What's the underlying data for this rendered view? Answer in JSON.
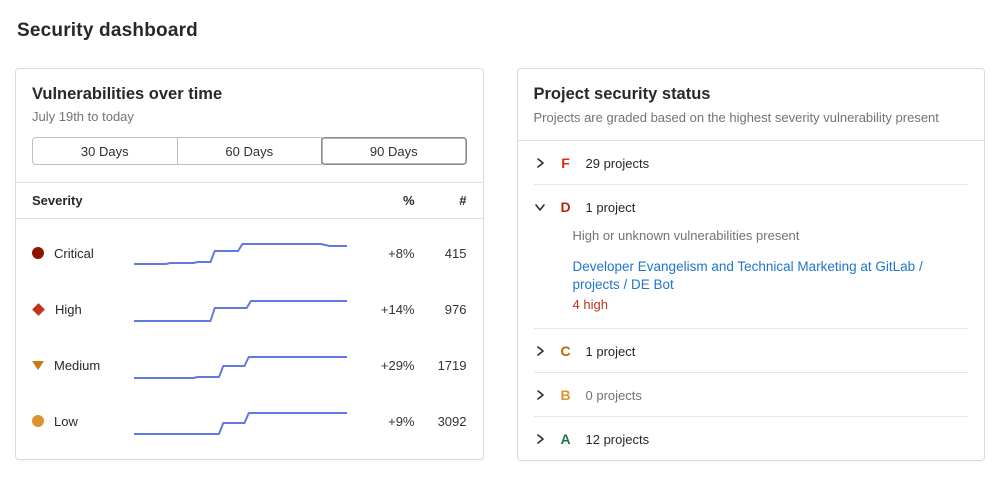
{
  "page": {
    "title": "Security dashboard"
  },
  "colors": {
    "sparkline_blue": "#617ae2",
    "link_blue": "#1f75cb",
    "danger_red": "#c0341d"
  },
  "vuln_card": {
    "title": "Vulnerabilities over time",
    "subtitle": "July 19th to today",
    "range_buttons": [
      {
        "label": "30 Days",
        "selected": false
      },
      {
        "label": "60 Days",
        "selected": false
      },
      {
        "label": "90 Days",
        "selected": true
      }
    ],
    "table": {
      "header": {
        "severity": "Severity",
        "percent": "%",
        "count": "#"
      },
      "rows": [
        {
          "severity": "Critical",
          "icon": "critical-icon",
          "icon_color": "#8d1300",
          "percent": "+8%",
          "count": "415"
        },
        {
          "severity": "High",
          "icon": "high-icon",
          "icon_color": "#c0341d",
          "percent": "+14%",
          "count": "976"
        },
        {
          "severity": "Medium",
          "icon": "medium-icon",
          "icon_color": "#c17d10",
          "percent": "+29%",
          "count": "1719"
        },
        {
          "severity": "Low",
          "icon": "low-icon",
          "icon_color": "#d99530",
          "percent": "+9%",
          "count": "3092"
        }
      ]
    },
    "chart_data": {
      "type": "line",
      "title": "Vulnerabilities over time",
      "x_range_label": "July 19th to today",
      "selected_range_days": 90,
      "legend_position": "none",
      "grid": false,
      "series": [
        {
          "name": "Critical",
          "change_percent": "+8%",
          "current_count": 415,
          "points": [
            [
              0,
              31
            ],
            [
              15,
              31
            ],
            [
              17,
              30
            ],
            [
              28,
              30
            ],
            [
              30,
              29
            ],
            [
              36,
              29
            ],
            [
              38,
              18
            ],
            [
              49,
              18
            ],
            [
              51,
              11
            ],
            [
              88,
              11
            ],
            [
              92,
              13
            ],
            [
              100,
              13
            ]
          ]
        },
        {
          "name": "High",
          "change_percent": "+14%",
          "current_count": 976,
          "points": [
            [
              0,
              32
            ],
            [
              36,
              32
            ],
            [
              38,
              19
            ],
            [
              53,
              19
            ],
            [
              55,
              12
            ],
            [
              100,
              12
            ]
          ]
        },
        {
          "name": "Medium",
          "change_percent": "+29%",
          "current_count": 1719,
          "points": [
            [
              0,
              33
            ],
            [
              28,
              33
            ],
            [
              30,
              32
            ],
            [
              40,
              32
            ],
            [
              42,
              21
            ],
            [
              52,
              21
            ],
            [
              54,
              12
            ],
            [
              100,
              12
            ]
          ]
        },
        {
          "name": "Low",
          "change_percent": "+9%",
          "current_count": 3092,
          "points": [
            [
              0,
              33
            ],
            [
              40,
              33
            ],
            [
              42,
              22
            ],
            [
              52,
              22
            ],
            [
              54,
              12
            ],
            [
              100,
              12
            ]
          ]
        }
      ]
    }
  },
  "status_card": {
    "title": "Project security status",
    "subtitle": "Projects are graded based on the highest severity vulnerability present",
    "grades": [
      {
        "letter": "F",
        "color": "#dd2b0e",
        "count_label": "29 projects",
        "expanded": false
      },
      {
        "letter": "D",
        "color": "#b22b10",
        "count_label": "1 project",
        "expanded": true,
        "description": "High or unknown vulnerabilities present",
        "project_link": "Developer Evangelism and Technical Marketing at GitLab / projects / DE Bot",
        "finding_summary": "4 high"
      },
      {
        "letter": "C",
        "color": "#c26000",
        "count_label": "1 project",
        "expanded": false
      },
      {
        "letter": "B",
        "color": "#d99530",
        "count_label": "0 projects",
        "expanded": false
      },
      {
        "letter": "A",
        "color": "#217645",
        "count_label": "12 projects",
        "expanded": false
      }
    ]
  }
}
